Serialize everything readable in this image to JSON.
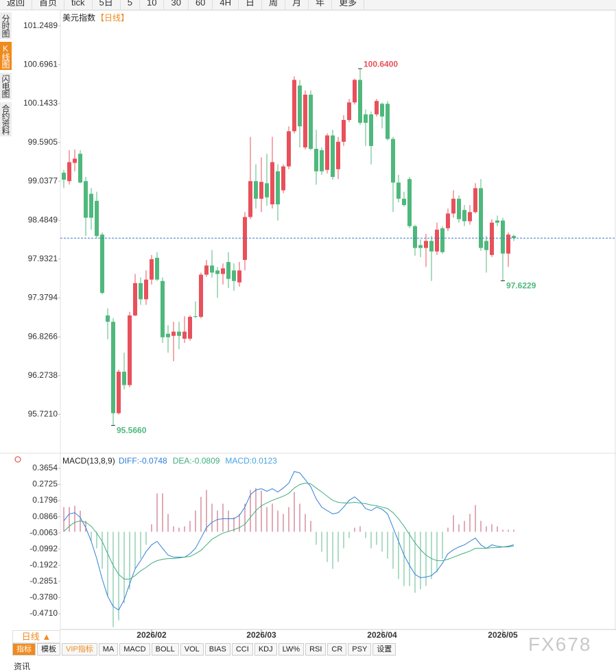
{
  "toolbar": [
    "返回",
    "首页",
    "tick",
    "5日",
    "5",
    "10",
    "30",
    "60",
    "4H",
    "日",
    "周",
    "月",
    "年",
    "更多"
  ],
  "side_tabs": [
    "分时图",
    "K线图",
    "闪电图",
    "合约资料"
  ],
  "period_tab": "日线 ▲",
  "indicator_tabs": [
    "指标",
    "模板",
    "VIP指标",
    "MA",
    "MACD",
    "BOLL",
    "VOL",
    "BIAS",
    "CCI",
    "KDJ",
    "LW%",
    "RSI",
    "CR",
    "PSY",
    "设置"
  ],
  "watermark": "FX678",
  "footer": "资讯",
  "chart_data": [
    {
      "type": "candlestick",
      "title": "美元指数",
      "subtitle": "【日线】",
      "up_color": "#e8505b",
      "down_color": "#4fb87c",
      "last_line_color": "#3a78c8",
      "categories": [
        null,
        null,
        null,
        null,
        null,
        null,
        null,
        null,
        null,
        null,
        null,
        null,
        null,
        null,
        null,
        null,
        "2026/02",
        null,
        null,
        null,
        null,
        null,
        null,
        null,
        null,
        null,
        null,
        null,
        null,
        null,
        null,
        null,
        null,
        null,
        null,
        null,
        "2026/03",
        null,
        null,
        null,
        null,
        null,
        null,
        null,
        null,
        null,
        null,
        null,
        null,
        null,
        null,
        null,
        null,
        null,
        null,
        null,
        null,
        null,
        "2026/04",
        null,
        null,
        null,
        null,
        null,
        null,
        null,
        null,
        null,
        null,
        null,
        null,
        null,
        null,
        null,
        null,
        null,
        null,
        null,
        null,
        null,
        "2026/05",
        null,
        null
      ],
      "open": [
        99.16,
        99.04,
        99.3,
        99.43,
        99.04,
        98.86,
        98.76,
        98.28,
        97.13,
        97.04,
        95.74,
        96.33,
        96.14,
        97.13,
        97.59,
        97.36,
        97.64,
        97.95,
        97.62,
        96.87,
        96.84,
        96.9,
        96.8,
        96.8,
        97.12,
        97.11,
        97.71,
        97.84,
        97.77,
        97.72,
        97.89,
        97.77,
        97.6,
        97.92,
        98.53,
        99.04,
        98.79,
        99.01,
        98.71,
        99.18,
        98.91,
        99.25,
        99.75,
        100.4,
        99.52,
        100.27,
        99.5,
        99.48,
        99.2,
        99.69,
        99.21,
        99.6,
        99.91,
        100.16,
        100.48,
        99.99,
        99.99,
        99.99,
        100.14,
        100.14,
        99.64,
        99.02,
        98.79,
        99.07,
        98.4,
        98.13,
        98.09,
        98.19,
        98.04,
        98.37,
        98.37,
        98.58,
        98.79,
        98.63,
        98.47,
        98.6,
        98.94,
        98.19,
        97.99,
        98.48,
        98.48,
        98.01,
        98.26
      ],
      "high": [
        99.2,
        99.48,
        99.49,
        99.48,
        99.1,
        98.94,
        98.89,
        98.31,
        97.23,
        97.09,
        96.36,
        96.6,
        97.18,
        97.72,
        97.67,
        97.77,
        97.99,
        98.03,
        97.67,
        96.99,
        97.04,
        97.04,
        97.12,
        97.13,
        97.33,
        97.74,
        97.92,
        98.06,
        97.82,
        97.87,
        98.03,
        97.87,
        97.89,
        98.6,
        99.67,
        99.28,
        99.38,
        99.43,
        99.67,
        99.28,
        99.28,
        99.82,
        100.53,
        100.48,
        100.33,
        100.33,
        99.77,
        99.52,
        99.72,
        99.77,
        99.67,
        99.98,
        100.21,
        100.5,
        100.64,
        100.06,
        100.03,
        100.21,
        100.16,
        100.18,
        99.67,
        99.13,
        98.89,
        99.1,
        98.42,
        98.21,
        98.29,
        98.26,
        98.45,
        98.4,
        98.65,
        98.91,
        98.84,
        98.7,
        98.7,
        99.01,
        99.07,
        98.26,
        98.5,
        98.55,
        98.52,
        98.31,
        98.28
      ],
      "low": [
        98.94,
        98.99,
        99.18,
        99.01,
        98.26,
        98.35,
        98.23,
        97.43,
        96.79,
        95.566,
        95.72,
        96.08,
        96.11,
        97.12,
        97.28,
        97.28,
        97.57,
        97.62,
        96.74,
        96.6,
        96.48,
        96.65,
        96.74,
        96.77,
        97.09,
        97.09,
        97.68,
        97.67,
        97.38,
        97.57,
        97.52,
        97.48,
        97.54,
        97.77,
        98.5,
        98.65,
        98.6,
        98.69,
        98.65,
        98.48,
        98.87,
        99.21,
        99.72,
        99.52,
        99.49,
        99.48,
        98.99,
        99.13,
        99.15,
        99.06,
        99.07,
        99.54,
        99.88,
        100.13,
        99.84,
        99.54,
        99.28,
        99.96,
        99.79,
        99.62,
        98.6,
        98.74,
        98.68,
        98.37,
        97.98,
        97.96,
        97.82,
        97.62,
        97.99,
        98.01,
        98.33,
        98.52,
        98.45,
        98.4,
        98.42,
        98.58,
        98.05,
        97.74,
        97.96,
        98.4,
        97.6229,
        97.82,
        98.19
      ],
      "close": [
        99.06,
        99.31,
        99.36,
        99.02,
        98.52,
        98.52,
        98.26,
        97.45,
        97.04,
        95.74,
        96.33,
        96.14,
        97.13,
        97.59,
        97.36,
        97.64,
        97.93,
        97.64,
        96.82,
        96.82,
        96.9,
        96.84,
        96.9,
        97.11,
        97.11,
        97.71,
        97.84,
        97.74,
        97.72,
        97.8,
        97.65,
        97.62,
        97.77,
        98.53,
        99.04,
        98.79,
        99.03,
        98.81,
        99.31,
        98.71,
        99.25,
        99.75,
        100.48,
        99.82,
        100.27,
        99.5,
        99.18,
        99.18,
        99.69,
        99.1,
        99.6,
        99.91,
        100.16,
        100.48,
        99.87,
        99.87,
        99.54,
        100.18,
        99.96,
        99.64,
        99.02,
        98.79,
        98.7,
        98.4,
        98.09,
        98.09,
        98.19,
        98.04,
        98.35,
        98.03,
        98.58,
        98.79,
        98.5,
        98.47,
        98.6,
        98.94,
        98.09,
        98.06,
        98.45,
        98.45,
        98.01,
        98.28,
        98.23
      ],
      "extremes": [
        {
          "value": 100.64,
          "label": "100.6400"
        },
        {
          "value": 95.566,
          "label": "95.5660"
        },
        {
          "value": 97.6229,
          "label": "97.6229"
        }
      ],
      "ylim": [
        95.18,
        101.47
      ],
      "yticks": [
        101.2489,
        100.6961,
        100.1433,
        99.5905,
        99.0377,
        98.4849,
        97.9321,
        97.3794,
        96.8266,
        96.2738,
        {
          "value": 95.721,
          "label": "95.7210"
        }
      ]
    },
    {
      "type": "macd",
      "title": "MACD(13,8,9)",
      "histogram_label": "MACD:0.0123",
      "histogram_label_color": "#4aa3df",
      "up_color": "#c0566e",
      "down_color": "#5dba8e",
      "values": [
        0.142,
        0.142,
        0.15,
        0.122,
        0.063,
        -0.055,
        -0.095,
        -0.213,
        -0.371,
        -0.548,
        -0.509,
        -0.41,
        -0.331,
        -0.213,
        -0.154,
        -0.075,
        0.043,
        0.221,
        0.221,
        0.103,
        0.032,
        0.024,
        0.032,
        0.063,
        0.122,
        0.201,
        0.241,
        0.162,
        0.122,
        0.162,
        0.122,
        0.083,
        0.103,
        0.162,
        0.241,
        0.252,
        0.237,
        0.142,
        0.162,
        0.122,
        0.103,
        0.142,
        0.229,
        0.162,
        0.103,
        0.063,
        -0.075,
        -0.114,
        -0.174,
        -0.213,
        -0.174,
        -0.095,
        -0.036,
        0.024,
        0.032,
        -0.036,
        -0.095,
        -0.075,
        -0.114,
        -0.154,
        -0.213,
        -0.272,
        -0.312,
        -0.312,
        -0.351,
        -0.331,
        -0.312,
        -0.272,
        -0.233,
        -0.154,
        0.024,
        0.095,
        0.043,
        0.063,
        0.103,
        0.154,
        0.063,
        0.032,
        0.043,
        0.032,
        0.012,
        0.012,
        0.0123
      ],
      "series": [
        {
          "label": "DIFF:-0.0748",
          "color": "#2f7fd8",
          "values": [
            0.063,
            0.103,
            0.11,
            0.083,
            0.024,
            -0.055,
            -0.154,
            -0.272,
            -0.371,
            -0.43,
            -0.45,
            -0.391,
            -0.3,
            -0.213,
            -0.166,
            -0.114,
            -0.075,
            -0.055,
            -0.095,
            -0.134,
            -0.146,
            -0.146,
            -0.146,
            -0.126,
            -0.095,
            -0.036,
            0.024,
            0.055,
            0.071,
            0.075,
            0.075,
            0.075,
            0.095,
            0.142,
            0.213,
            0.241,
            0.248,
            0.233,
            0.248,
            0.229,
            0.252,
            0.28,
            0.347,
            0.339,
            0.3,
            0.26,
            0.189,
            0.142,
            0.122,
            0.103,
            0.11,
            0.142,
            0.181,
            0.201,
            0.174,
            0.134,
            0.122,
            0.142,
            0.13,
            0.103,
            0.024,
            -0.055,
            -0.134,
            -0.193,
            -0.245,
            -0.264,
            -0.26,
            -0.252,
            -0.225,
            -0.181,
            -0.126,
            -0.103,
            -0.087,
            -0.075,
            -0.055,
            -0.036,
            -0.075,
            -0.095,
            -0.075,
            -0.083,
            -0.087,
            -0.083,
            -0.0748
          ]
        },
        {
          "label": "DEA:-0.0809",
          "color": "#3dae7e",
          "values": [
            0.002,
            0.032,
            0.055,
            0.063,
            0.055,
            0.032,
            -0.008,
            -0.055,
            -0.126,
            -0.193,
            -0.245,
            -0.272,
            -0.272,
            -0.252,
            -0.225,
            -0.205,
            -0.181,
            -0.166,
            -0.158,
            -0.154,
            -0.154,
            -0.15,
            -0.146,
            -0.142,
            -0.126,
            -0.107,
            -0.075,
            -0.043,
            -0.024,
            -0.008,
            0.002,
            0.012,
            0.024,
            0.043,
            0.083,
            0.122,
            0.15,
            0.166,
            0.181,
            0.193,
            0.205,
            0.221,
            0.252,
            0.272,
            0.28,
            0.276,
            0.252,
            0.229,
            0.205,
            0.181,
            0.17,
            0.166,
            0.166,
            0.17,
            0.166,
            0.162,
            0.154,
            0.15,
            0.142,
            0.134,
            0.11,
            0.075,
            0.032,
            -0.016,
            -0.063,
            -0.103,
            -0.134,
            -0.154,
            -0.166,
            -0.166,
            -0.158,
            -0.146,
            -0.134,
            -0.122,
            -0.111,
            -0.095,
            -0.095,
            -0.095,
            -0.091,
            -0.091,
            -0.087,
            -0.087,
            -0.0809
          ]
        }
      ],
      "ylim": [
        -0.562,
        0.448
      ],
      "yticks": [
        0.3654,
        0.2725,
        0.1796,
        0.0866,
        -0.0063,
        -0.0992,
        -0.1922,
        -0.2851,
        {
          "value": -0.378,
          "label": "-0.3780"
        },
        {
          "value": -0.471,
          "label": "-0.4710"
        }
      ]
    }
  ]
}
